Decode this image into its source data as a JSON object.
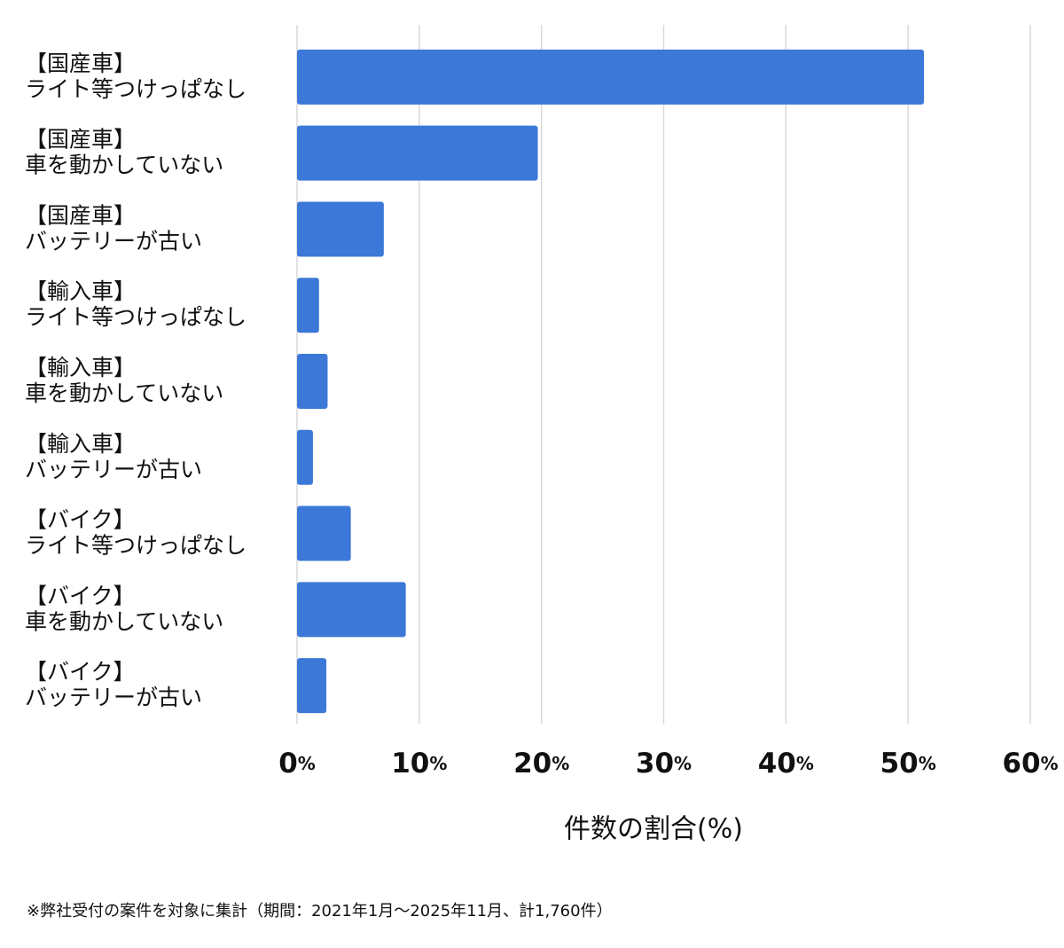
{
  "chart_data": {
    "type": "bar",
    "orientation": "horizontal",
    "categories": [
      [
        "【国産車】",
        "ライト等つけっぱなし"
      ],
      [
        "【国産車】",
        "車を動かしていない"
      ],
      [
        "【国産車】",
        "バッテリーが古い"
      ],
      [
        "【輸入車】",
        "ライト等つけっぱなし"
      ],
      [
        "【輸入車】",
        "車を動かしていない"
      ],
      [
        "【輸入車】",
        "バッテリーが古い"
      ],
      [
        "【バイク】",
        "ライト等つけっぱなし"
      ],
      [
        "【バイク】",
        "車を動かしていない"
      ],
      [
        "【バイク】",
        "バッテリーが古い"
      ]
    ],
    "values": [
      51.3,
      19.7,
      7.1,
      1.8,
      2.5,
      1.3,
      4.4,
      8.9,
      2.4
    ],
    "color": "#3c78d8",
    "xlim": [
      0,
      60
    ],
    "xticks": [
      {
        "value": 0,
        "label": "0%"
      },
      {
        "value": 10,
        "label": "10%"
      },
      {
        "value": 20,
        "label": "20%"
      },
      {
        "value": 30,
        "label": "30%"
      },
      {
        "value": 40,
        "label": "40%"
      },
      {
        "value": 50,
        "label": "50%"
      },
      {
        "value": 60,
        "label": "60%"
      }
    ],
    "xlabel": "件数の割合(%)",
    "grid": true,
    "footnote": "※弊社受付の案件を対象に集計（期間：2021年1月〜2025年11月、計1,760件）"
  }
}
